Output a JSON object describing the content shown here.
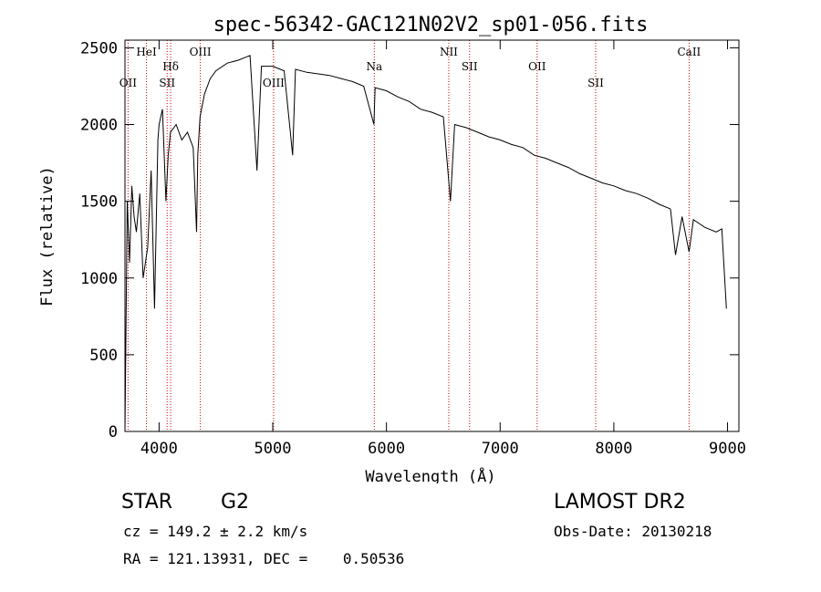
{
  "chart_data": {
    "type": "line",
    "title": "spec-56342-GAC121N02V2_sp01-056.fits",
    "xlabel": "Wavelength (Å)",
    "ylabel": "Flux (relative)",
    "xlim": [
      3700,
      9100
    ],
    "ylim": [
      0,
      2550
    ],
    "xticks": [
      4000,
      5000,
      6000,
      7000,
      8000,
      9000
    ],
    "yticks": [
      0,
      500,
      1000,
      1500,
      2000,
      2500
    ],
    "grid": false,
    "line_color": "#000000",
    "marker_color": "#cc0000",
    "series": [
      {
        "x": [
          3700,
          3720,
          3740,
          3760,
          3780,
          3800,
          3830,
          3860,
          3900,
          3930,
          3960,
          3990,
          4000,
          4030,
          4060,
          4080,
          4100,
          4150,
          4200,
          4250,
          4300,
          4330,
          4340,
          4360,
          4400,
          4450,
          4500,
          4600,
          4700,
          4800,
          4861,
          4900,
          5000,
          5100,
          5175,
          5200,
          5300,
          5400,
          5500,
          5600,
          5700,
          5800,
          5890,
          5900,
          6000,
          6100,
          6200,
          6300,
          6400,
          6500,
          6563,
          6600,
          6700,
          6800,
          6900,
          7000,
          7100,
          7200,
          7300,
          7400,
          7500,
          7600,
          7700,
          7800,
          7900,
          8000,
          8100,
          8200,
          8300,
          8400,
          8498,
          8542,
          8600,
          8662,
          8700,
          8800,
          8900,
          8950,
          8990
        ],
        "y": [
          0,
          1500,
          1100,
          1600,
          1400,
          1300,
          1550,
          1000,
          1200,
          1700,
          800,
          1900,
          2000,
          2100,
          1500,
          1800,
          1950,
          2000,
          1900,
          1950,
          1850,
          1300,
          1800,
          2050,
          2200,
          2300,
          2350,
          2400,
          2420,
          2450,
          1700,
          2380,
          2380,
          2350,
          1800,
          2360,
          2340,
          2330,
          2320,
          2300,
          2280,
          2250,
          2000,
          2240,
          2220,
          2180,
          2150,
          2100,
          2080,
          2050,
          1500,
          2000,
          1980,
          1950,
          1920,
          1900,
          1870,
          1850,
          1800,
          1780,
          1750,
          1720,
          1680,
          1650,
          1620,
          1600,
          1570,
          1550,
          1520,
          1480,
          1450,
          1150,
          1400,
          1170,
          1380,
          1330,
          1300,
          1320,
          800
        ]
      }
    ],
    "line_markers": [
      {
        "label": "OII",
        "x": 3727,
        "row": "low"
      },
      {
        "label": "HeI",
        "x": 3889,
        "row": "high"
      },
      {
        "label": "SII",
        "x": 4071,
        "row": "low"
      },
      {
        "label": "Hδ",
        "x": 4102,
        "row": "mid"
      },
      {
        "label": "OIII",
        "x": 4363,
        "row": "high"
      },
      {
        "label": "OIII",
        "x": 5007,
        "row": "low"
      },
      {
        "label": "Na",
        "x": 5893,
        "row": "mid"
      },
      {
        "label": "NII",
        "x": 6548,
        "row": "high"
      },
      {
        "label": "SII",
        "x": 6731,
        "row": "mid"
      },
      {
        "label": "OII",
        "x": 7325,
        "row": "mid"
      },
      {
        "label": "SII",
        "x": 7840,
        "row": "low"
      },
      {
        "label": "CaII",
        "x": 8662,
        "row": "high"
      }
    ]
  },
  "info": {
    "object_type": "STAR",
    "subclass": "G2",
    "survey": "LAMOST DR2",
    "redshift": "cz = 149.2 ± 2.2 km/s",
    "obs_date": "Obs-Date: 20130218",
    "coords": "RA = 121.13931, DEC =    0.50536"
  }
}
